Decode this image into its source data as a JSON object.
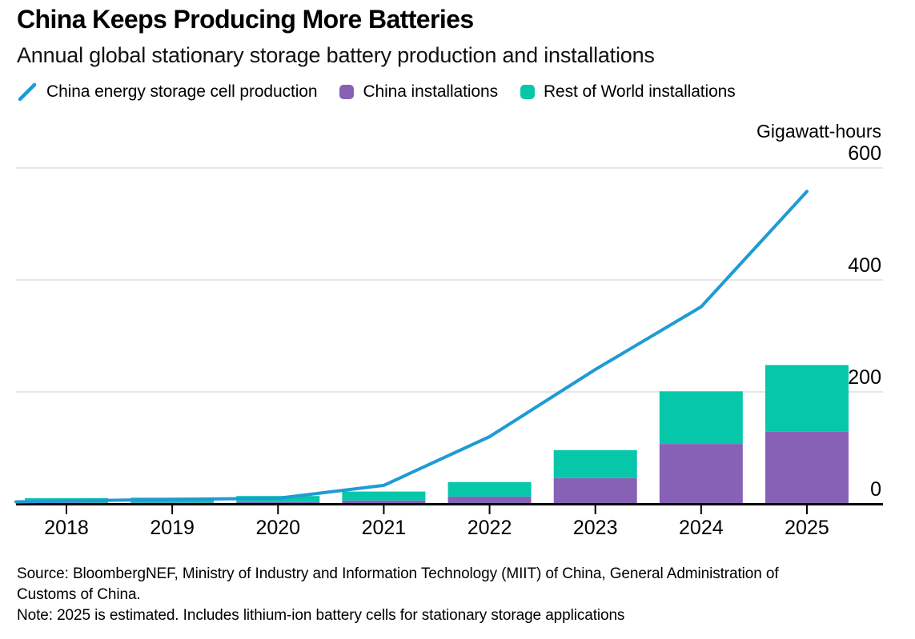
{
  "header": {
    "title": "China Keeps Producing More Batteries",
    "subtitle": "Annual global stationary storage battery production and installations"
  },
  "legend": {
    "items": [
      {
        "label": "China energy storage cell production",
        "marker": "line-slash",
        "color": "#1f9bd4"
      },
      {
        "label": "China installations",
        "marker": "rounded-square",
        "color": "#8761b5"
      },
      {
        "label": "Rest of World installations",
        "marker": "rounded-square",
        "color": "#06c7a9"
      }
    ]
  },
  "axis": {
    "unit_label": "Gigawatt-hours"
  },
  "footer": {
    "source": "Source: BloombergNEF, Ministry of Industry and Information Technology (MIIT) of China, General Administration of Customs of China.",
    "note": "Note: 2025 is estimated. Includes lithium-ion battery cells for stationary storage applications"
  },
  "chart_data": {
    "type": "combo: stacked bar + line",
    "title": "China Keeps Producing More Batteries",
    "subtitle": "Annual global stationary storage battery production and installations",
    "categories": [
      "2018",
      "2019",
      "2020",
      "2021",
      "2022",
      "2023",
      "2024",
      "2025"
    ],
    "series": [
      {
        "name": "China energy storage cell production",
        "type": "line",
        "color": "#1f9bd4",
        "values": [
          5,
          8,
          10,
          33,
          120,
          240,
          352,
          558
        ]
      },
      {
        "name": "China installations",
        "type": "bar",
        "color": "#8761b5",
        "values": [
          2,
          2,
          3,
          6,
          13,
          46,
          107,
          129
        ]
      },
      {
        "name": "Rest of World installations",
        "type": "bar",
        "color": "#06c7a9",
        "values": [
          8,
          9,
          11,
          16,
          26,
          50,
          94,
          119
        ]
      }
    ],
    "ylabel": "Gigawatt-hours",
    "ylim": [
      0,
      600
    ],
    "yticks": [
      0,
      200,
      400,
      600
    ],
    "grid": "horizontal",
    "gridline_color": "#d8d8d8",
    "legend_position": "top"
  }
}
